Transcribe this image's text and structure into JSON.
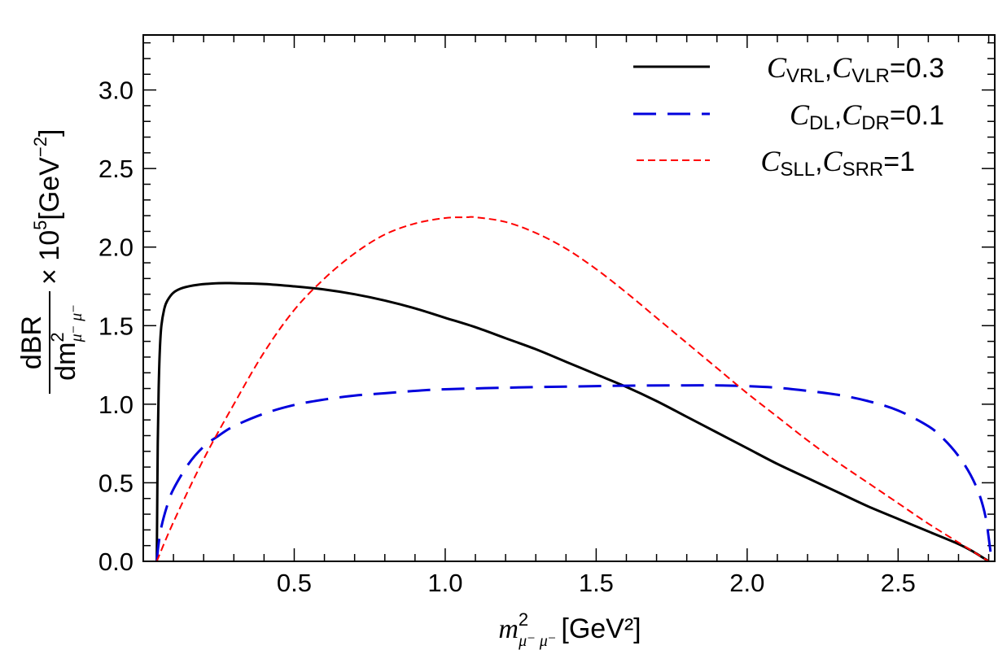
{
  "chart_data": {
    "type": "line",
    "title": "",
    "xlabel": {
      "symbol": "m",
      "superscript": "2",
      "subscript": "μ⁻ μ⁻",
      "unit": "[GeV²]"
    },
    "ylabel": {
      "numerator": "dBR",
      "denominator_symbol": "dm",
      "denominator_superscript": "2",
      "denominator_subscript": "μ⁻ μ⁻",
      "scale": "× 10",
      "scale_exponent": "5",
      "unit_prefix": "[GeV",
      "unit_exponent": "−2",
      "unit_suffix": "]"
    },
    "xlim": [
      0.0,
      2.82
    ],
    "ylim": [
      0.0,
      3.35
    ],
    "xticks": [
      0.5,
      1.0,
      1.5,
      2.0,
      2.5
    ],
    "xtick_labels": [
      "0.5",
      "1.0",
      "1.5",
      "2.0",
      "2.5"
    ],
    "yticks": [
      0.0,
      0.5,
      1.0,
      1.5,
      2.0,
      2.5,
      3.0
    ],
    "ytick_labels": [
      "0.0",
      "0.5",
      "1.0",
      "1.5",
      "2.0",
      "2.5",
      "3.0"
    ],
    "grid": false,
    "legend_position": "top-right",
    "series": [
      {
        "name": "C_VRL, C_VLR = 0.3",
        "legend": {
          "c1": "C",
          "s1": "VRL",
          "c2": "C",
          "s2": "VLR",
          "value": "=0.3"
        },
        "color": "#000000",
        "style": "solid",
        "points": [
          [
            0.0447,
            0.0
          ],
          [
            0.046,
            0.3
          ],
          [
            0.048,
            0.75
          ],
          [
            0.051,
            1.1
          ],
          [
            0.055,
            1.35
          ],
          [
            0.06,
            1.5
          ],
          [
            0.07,
            1.61
          ],
          [
            0.08,
            1.66
          ],
          [
            0.1,
            1.71
          ],
          [
            0.13,
            1.74
          ],
          [
            0.18,
            1.76
          ],
          [
            0.25,
            1.77
          ],
          [
            0.3,
            1.77
          ],
          [
            0.4,
            1.765
          ],
          [
            0.5,
            1.75
          ],
          [
            0.6,
            1.73
          ],
          [
            0.7,
            1.7
          ],
          [
            0.8,
            1.66
          ],
          [
            0.9,
            1.61
          ],
          [
            1.0,
            1.55
          ],
          [
            1.1,
            1.49
          ],
          [
            1.2,
            1.42
          ],
          [
            1.3,
            1.35
          ],
          [
            1.4,
            1.27
          ],
          [
            1.5,
            1.19
          ],
          [
            1.6,
            1.11
          ],
          [
            1.7,
            1.02
          ],
          [
            1.8,
            0.92
          ],
          [
            1.9,
            0.82
          ],
          [
            2.0,
            0.72
          ],
          [
            2.1,
            0.62
          ],
          [
            2.2,
            0.53
          ],
          [
            2.3,
            0.44
          ],
          [
            2.4,
            0.35
          ],
          [
            2.5,
            0.27
          ],
          [
            2.6,
            0.19
          ],
          [
            2.7,
            0.11
          ],
          [
            2.75,
            0.06
          ],
          [
            2.8,
            0.0
          ]
        ]
      },
      {
        "name": "C_DL, C_DR = 0.1",
        "legend": {
          "c1": "C",
          "s1": "DL",
          "c2": "C",
          "s2": "DR",
          "value": "=0.1"
        },
        "color": "#0000dd",
        "style": "dashed",
        "points": [
          [
            0.0447,
            0.0
          ],
          [
            0.05,
            0.1
          ],
          [
            0.06,
            0.22
          ],
          [
            0.08,
            0.36
          ],
          [
            0.1,
            0.46
          ],
          [
            0.15,
            0.62
          ],
          [
            0.2,
            0.73
          ],
          [
            0.25,
            0.8
          ],
          [
            0.3,
            0.86
          ],
          [
            0.4,
            0.94
          ],
          [
            0.5,
            0.995
          ],
          [
            0.6,
            1.03
          ],
          [
            0.7,
            1.055
          ],
          [
            0.8,
            1.07
          ],
          [
            0.9,
            1.085
          ],
          [
            1.0,
            1.095
          ],
          [
            1.2,
            1.105
          ],
          [
            1.4,
            1.112
          ],
          [
            1.6,
            1.118
          ],
          [
            1.8,
            1.12
          ],
          [
            1.9,
            1.12
          ],
          [
            2.0,
            1.115
          ],
          [
            2.1,
            1.105
          ],
          [
            2.2,
            1.085
          ],
          [
            2.3,
            1.06
          ],
          [
            2.4,
            1.02
          ],
          [
            2.5,
            0.96
          ],
          [
            2.6,
            0.86
          ],
          [
            2.65,
            0.78
          ],
          [
            2.7,
            0.67
          ],
          [
            2.74,
            0.55
          ],
          [
            2.77,
            0.42
          ],
          [
            2.79,
            0.28
          ],
          [
            2.8,
            0.15
          ],
          [
            2.81,
            0.0
          ]
        ]
      },
      {
        "name": "C_SLL, C_SRR = 1",
        "legend": {
          "c1": "C",
          "s1": "SLL",
          "c2": "C",
          "s2": "SRR",
          "value": "=1"
        },
        "color": "#ff0000",
        "style": "short-dashed",
        "points": [
          [
            0.0447,
            0.0
          ],
          [
            0.1,
            0.25
          ],
          [
            0.2,
            0.65
          ],
          [
            0.3,
            1.0
          ],
          [
            0.4,
            1.33
          ],
          [
            0.5,
            1.6
          ],
          [
            0.6,
            1.8
          ],
          [
            0.7,
            1.96
          ],
          [
            0.8,
            2.08
          ],
          [
            0.9,
            2.15
          ],
          [
            1.0,
            2.185
          ],
          [
            1.07,
            2.19
          ],
          [
            1.1,
            2.19
          ],
          [
            1.2,
            2.16
          ],
          [
            1.3,
            2.09
          ],
          [
            1.4,
            1.99
          ],
          [
            1.5,
            1.86
          ],
          [
            1.6,
            1.71
          ],
          [
            1.7,
            1.55
          ],
          [
            1.8,
            1.39
          ],
          [
            1.9,
            1.23
          ],
          [
            2.0,
            1.07
          ],
          [
            2.1,
            0.92
          ],
          [
            2.2,
            0.77
          ],
          [
            2.3,
            0.63
          ],
          [
            2.4,
            0.5
          ],
          [
            2.5,
            0.37
          ],
          [
            2.6,
            0.24
          ],
          [
            2.7,
            0.12
          ],
          [
            2.8,
            0.0
          ]
        ]
      }
    ]
  }
}
